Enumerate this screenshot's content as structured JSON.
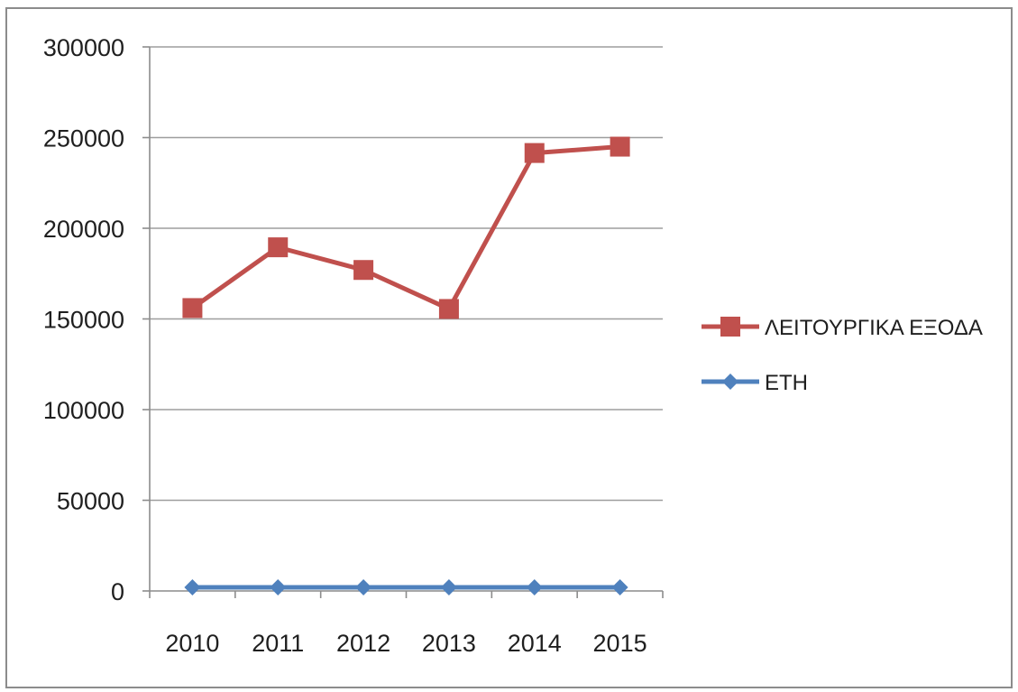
{
  "chart_data": {
    "type": "line",
    "categories": [
      "2010",
      "2011",
      "2012",
      "2013",
      "2014",
      "2015"
    ],
    "ylim": [
      0,
      300000
    ],
    "ytick_step": 50000,
    "yticks": [
      "0",
      "50000",
      "100000",
      "150000",
      "200000",
      "250000",
      "300000"
    ],
    "grid": true,
    "legend_position": "right",
    "series": [
      {
        "name": "ΛΕΙΤΟΥΡΓΙΚΑ ΕΞΟΔΑ",
        "values": [
          156000,
          189500,
          177000,
          155500,
          241500,
          245000
        ],
        "color": "#c0504d",
        "marker": "square"
      },
      {
        "name": "ΕΤΗ",
        "values": [
          2010,
          2011,
          2012,
          2013,
          2014,
          2015
        ],
        "color": "#4f81bd",
        "marker": "diamond"
      }
    ]
  }
}
